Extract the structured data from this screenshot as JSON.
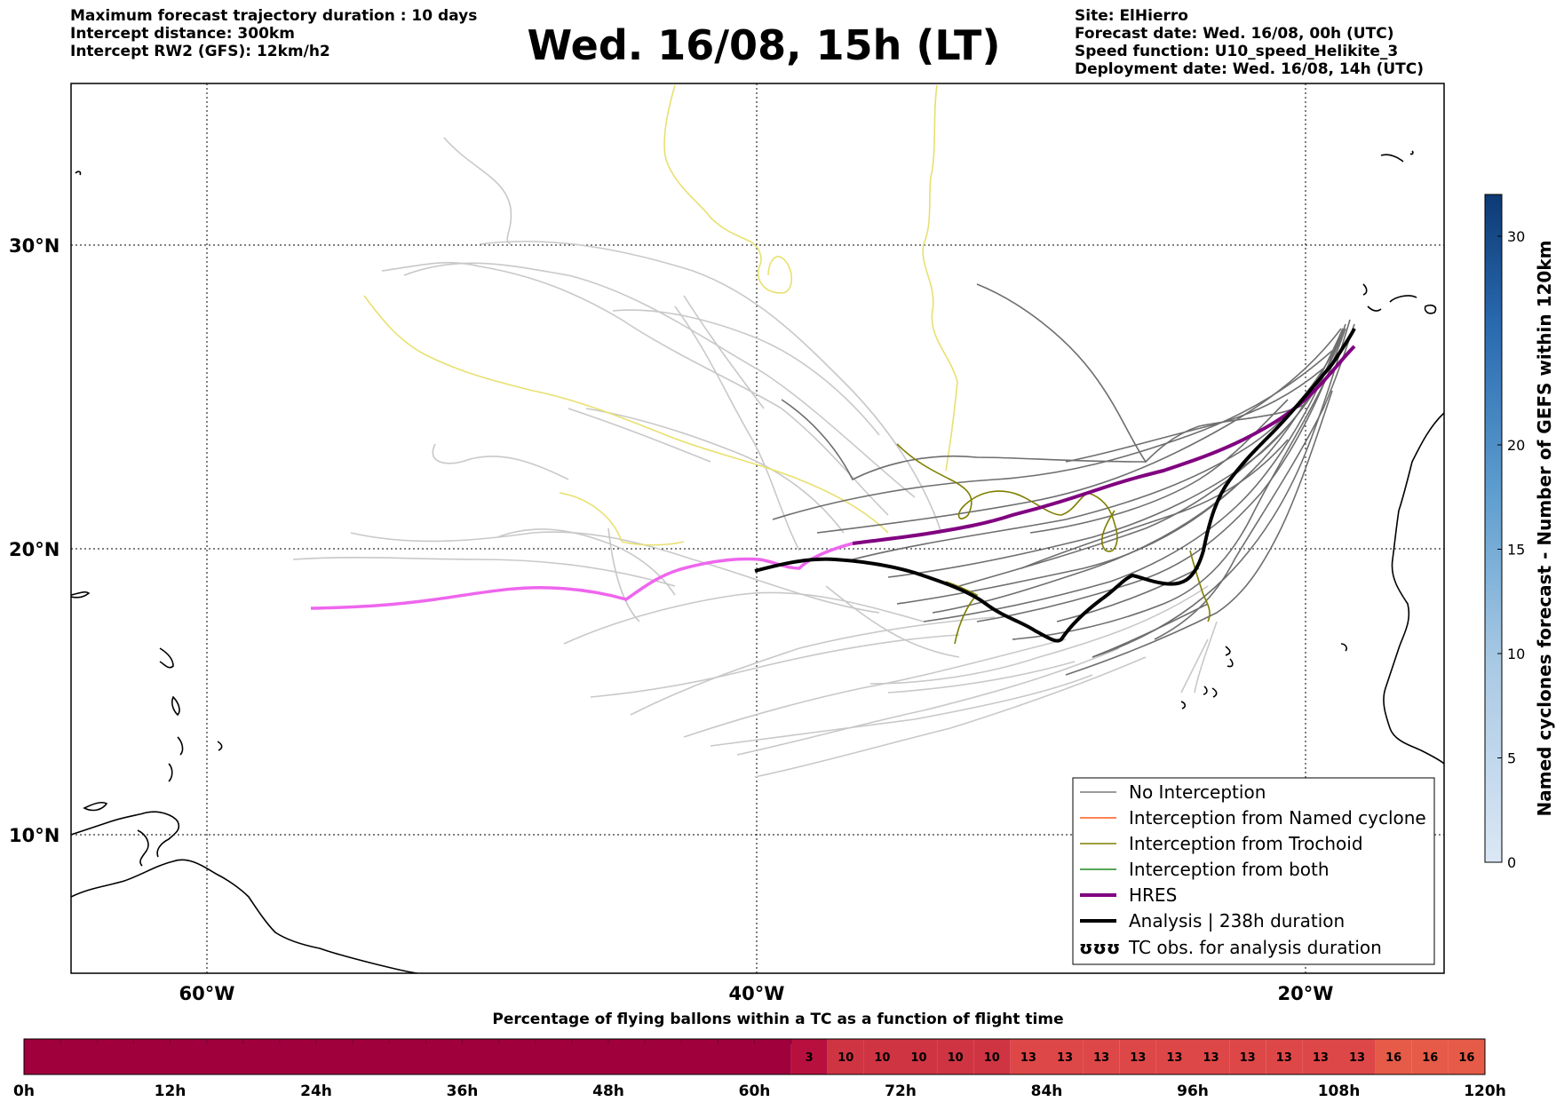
{
  "header_left": {
    "line1": "Maximum forecast trajectory duration : 10 days",
    "line2": "Intercept distance: 300km",
    "line3": "Intercept RW2 (GFS):  12km/h2"
  },
  "title": "Wed. 16/08, 15h (LT)",
  "header_right": {
    "line1": "Site: ElHierro",
    "line2": "Forecast date: Wed. 16/08, 00h (UTC)",
    "line3": "Speed function: U10_speed_Helikite_3",
    "line4": "Deployment date: Wed. 16/08, 14h (UTC)"
  },
  "map": {
    "lat_labels": [
      "30°N",
      "20°N",
      "10°N"
    ],
    "lon_labels": [
      "60°W",
      "40°W",
      "20°W"
    ],
    "colors": {
      "no_interception": "#7a7a7a",
      "named_cyclone": "#ff5a1e",
      "trochoid": "#7f7f00",
      "both": "#1e8c1e",
      "hres": "#800080",
      "analysis": "#000000",
      "ensemble_light": "#c8c8c8",
      "yellow_tracks": "#e8e070",
      "pink_track": "#ee66ee"
    }
  },
  "legend": {
    "items": [
      "No Interception",
      "Interception from Named cyclone",
      "Interception from Trochoid",
      "Interception from both",
      "HRES",
      "Analysis | 238h duration",
      "TC obs. for analysis duration"
    ],
    "tc_symbol": "ʊʊʊ"
  },
  "colorbar": {
    "title": "Named cyclones forecast - Number of GEFS within 120km",
    "ticks": [
      "0",
      "5",
      "10",
      "15",
      "20",
      "30"
    ],
    "min": 0,
    "max": 32
  },
  "time_bar": {
    "caption": "Percentage of flying ballons within a TC as a function of flight time",
    "ticks": [
      "0h",
      "12h",
      "24h",
      "36h",
      "48h",
      "60h",
      "72h",
      "84h",
      "96h",
      "108h",
      "120h"
    ],
    "cells": [
      {
        "value": "",
        "span": 21
      },
      {
        "value": "3",
        "span": 1
      },
      {
        "value": "10",
        "span": 1
      },
      {
        "value": "10",
        "span": 1
      },
      {
        "value": "10",
        "span": 1
      },
      {
        "value": "10",
        "span": 1
      },
      {
        "value": "10",
        "span": 1
      },
      {
        "value": "13",
        "span": 1
      },
      {
        "value": "13",
        "span": 1
      },
      {
        "value": "13",
        "span": 1
      },
      {
        "value": "13",
        "span": 1
      },
      {
        "value": "13",
        "span": 1
      },
      {
        "value": "13",
        "span": 1
      },
      {
        "value": "13",
        "span": 1
      },
      {
        "value": "13",
        "span": 1
      },
      {
        "value": "13",
        "span": 1
      },
      {
        "value": "13",
        "span": 1
      },
      {
        "value": "16",
        "span": 1
      },
      {
        "value": "16",
        "span": 1
      },
      {
        "value": "16",
        "span": 1
      }
    ]
  }
}
